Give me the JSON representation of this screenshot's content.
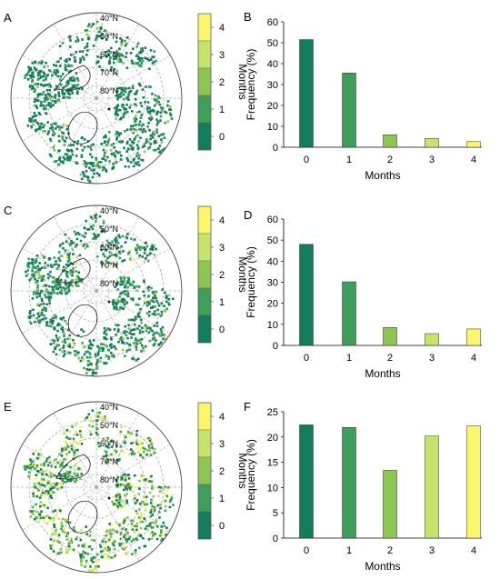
{
  "colors": {
    "month_0": "#127c5d",
    "month_1": "#3f9e5a",
    "month_2": "#8cc552",
    "month_3": "#c6e36a",
    "month_4": "#fbf66a",
    "coast": "#1e1e1e",
    "grid": "#8c8c8c"
  },
  "map_panels": [
    {
      "letter": "A",
      "latitude_labels": [
        "40°N",
        "50°N",
        "60°N",
        "70°N",
        "80°N"
      ],
      "colorbar_ticks": [
        "0",
        "1",
        "2",
        "3",
        "4"
      ],
      "colorbar_title": "Months"
    },
    {
      "letter": "C",
      "latitude_labels": [
        "40°N",
        "50°N",
        "60°N",
        "70°N",
        "80°N"
      ],
      "colorbar_ticks": [
        "0",
        "1",
        "2",
        "3",
        "4"
      ],
      "colorbar_title": "Months"
    },
    {
      "letter": "E",
      "latitude_labels": [
        "40°N",
        "50°N",
        "60°N",
        "70°N",
        "80°N"
      ],
      "colorbar_ticks": [
        "0",
        "1",
        "2",
        "3",
        "4"
      ],
      "colorbar_title": "Months"
    }
  ],
  "chart_data": [
    {
      "type": "bar",
      "panel": "B",
      "categories": [
        "0",
        "1",
        "2",
        "3",
        "4"
      ],
      "values": [
        51.5,
        35.5,
        6.0,
        4.2,
        2.7
      ],
      "xlabel": "Months",
      "ylabel": "Frequency (%)",
      "ylim": [
        0,
        60
      ],
      "yticks": [
        0,
        10,
        20,
        30,
        40,
        50,
        60
      ],
      "grid": false
    },
    {
      "type": "bar",
      "panel": "D",
      "categories": [
        "0",
        "1",
        "2",
        "3",
        "4"
      ],
      "values": [
        48.0,
        30.2,
        8.5,
        5.6,
        7.8
      ],
      "xlabel": "Months",
      "ylabel": "Frequency (%)",
      "ylim": [
        0,
        60
      ],
      "yticks": [
        0,
        10,
        20,
        30,
        40,
        50,
        60
      ],
      "grid": false
    },
    {
      "type": "bar",
      "panel": "F",
      "categories": [
        "0",
        "1",
        "2",
        "3",
        "4"
      ],
      "values": [
        22.4,
        21.9,
        13.4,
        20.2,
        22.2
      ],
      "xlabel": "Months",
      "ylabel": "Frequency (%)",
      "ylim": [
        0,
        25
      ],
      "yticks": [
        0,
        5,
        10,
        15,
        20,
        25
      ],
      "grid": false
    }
  ]
}
